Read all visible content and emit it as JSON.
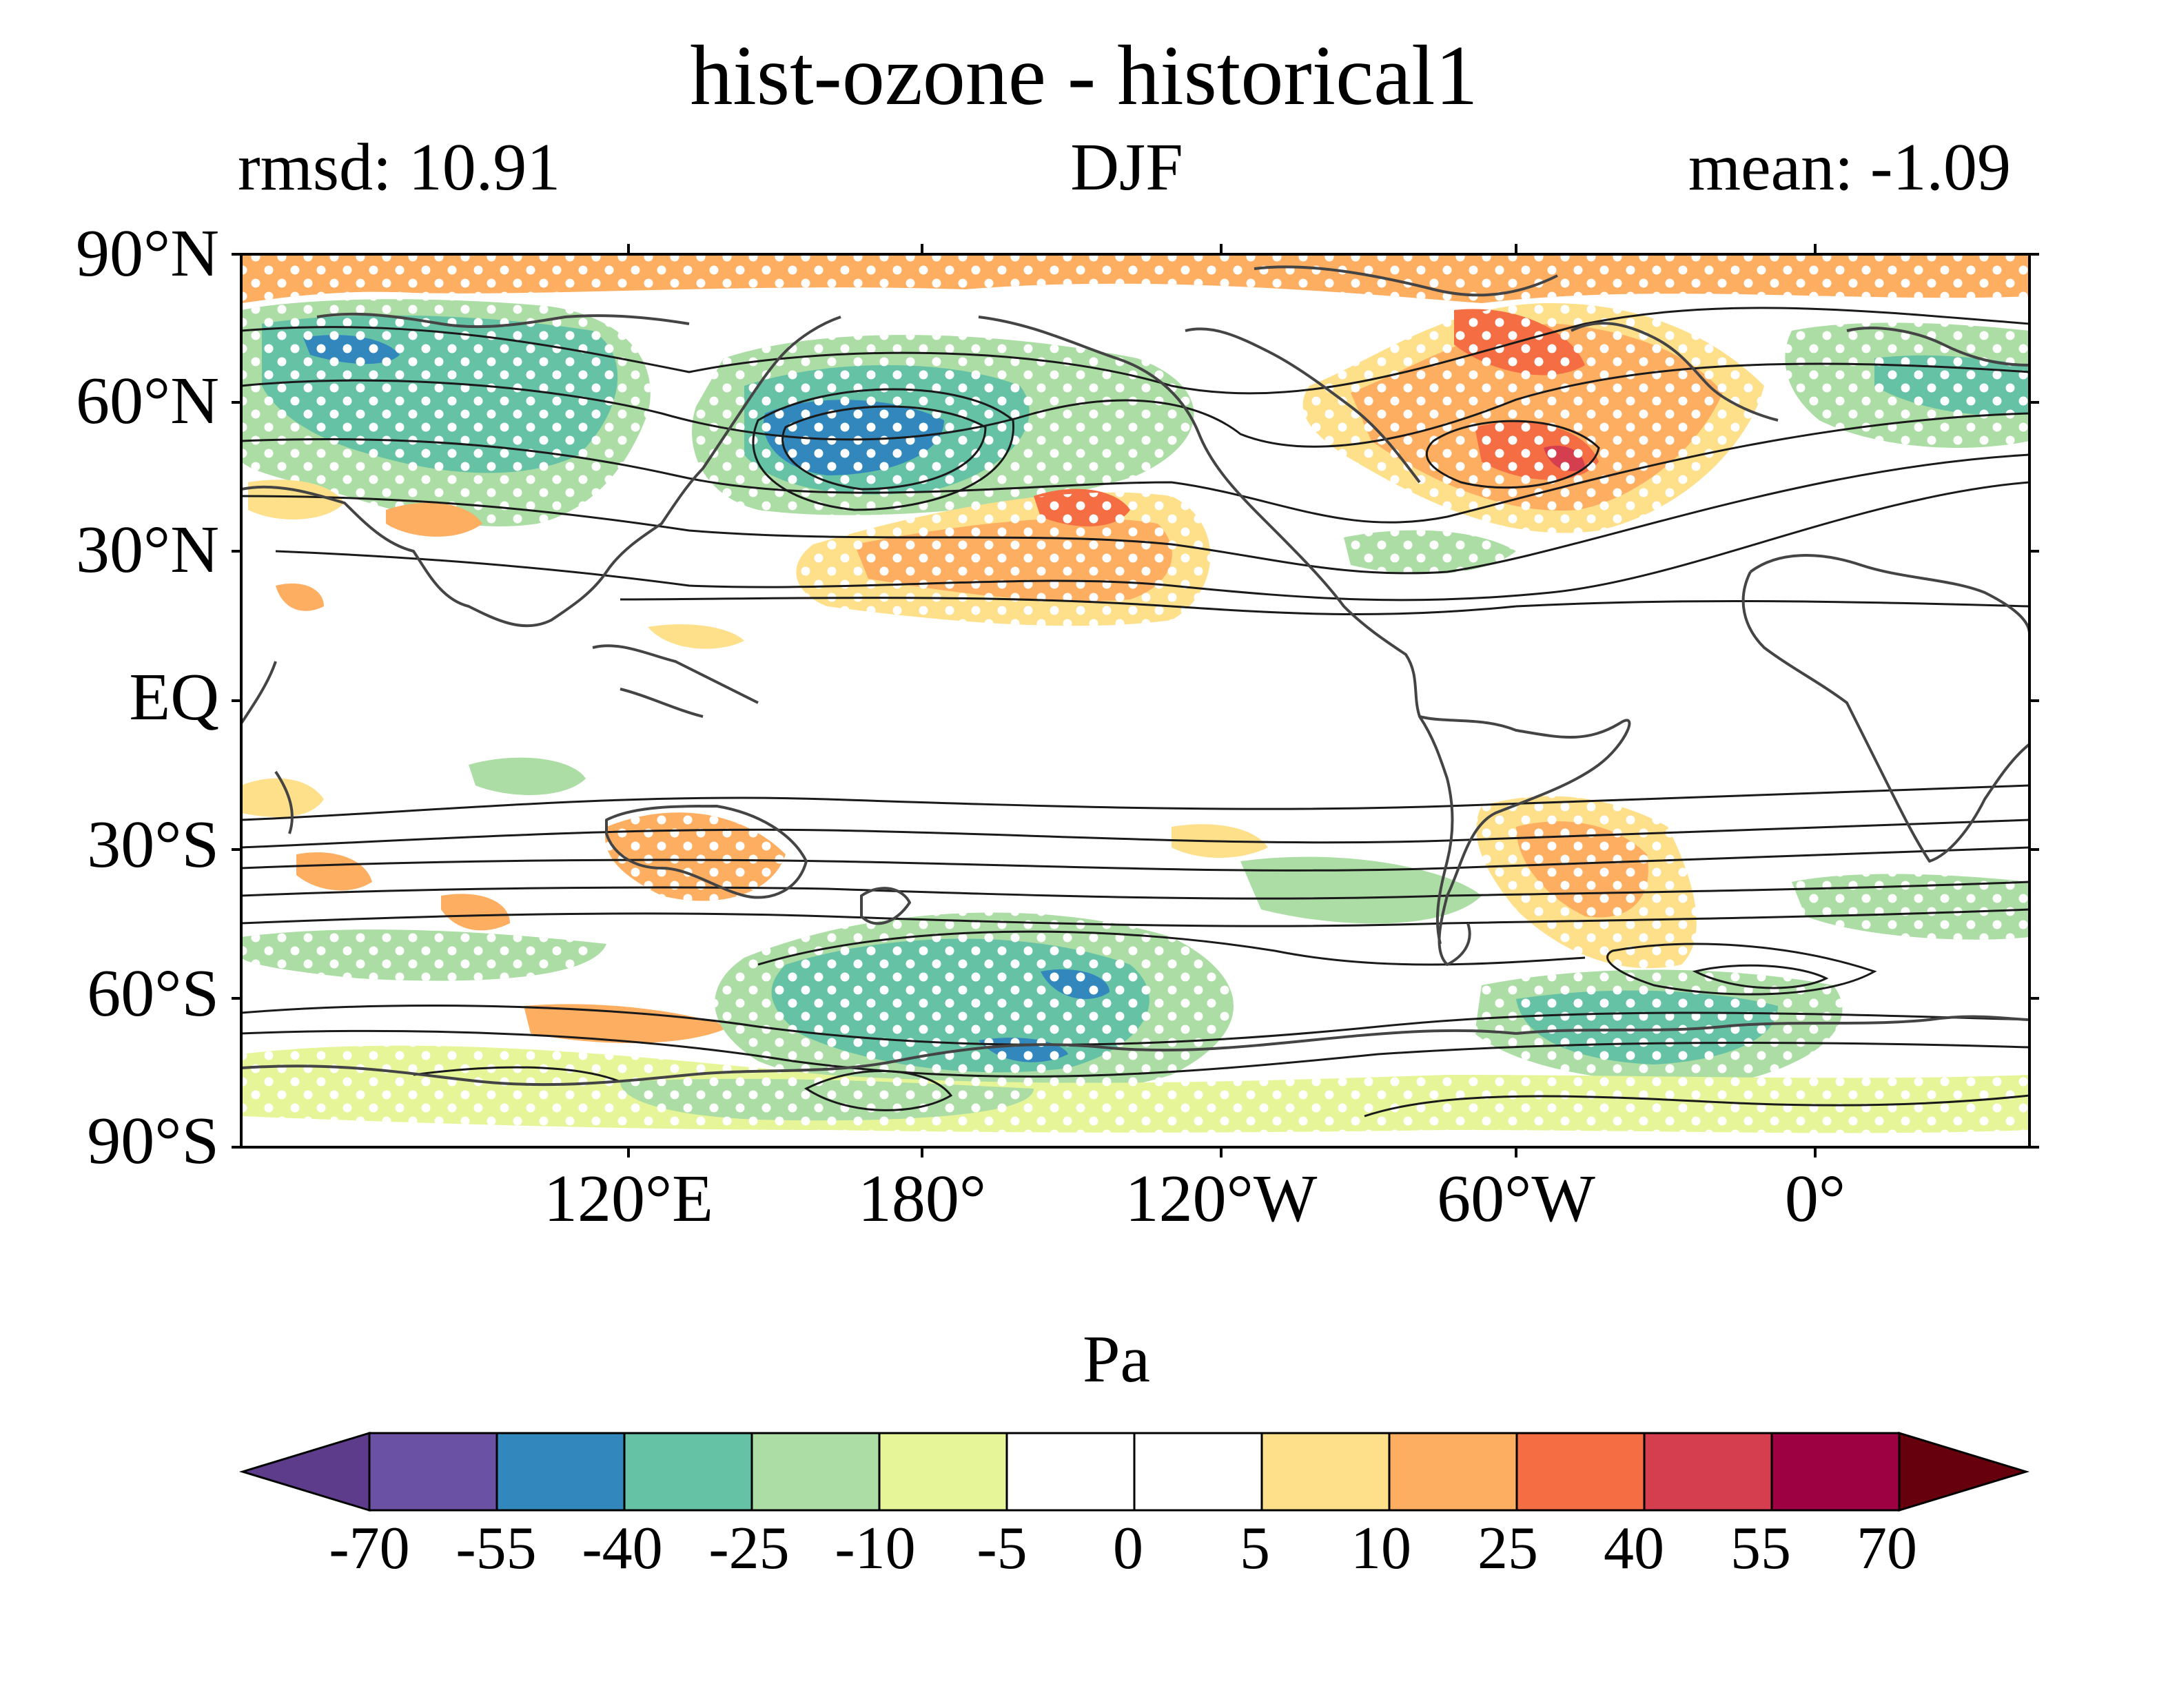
{
  "title": "hist-ozone - historical1",
  "subtitle_left": "rmsd: 10.91",
  "subtitle_center": "DJF",
  "subtitle_right": "mean: -1.09",
  "lat_labels": [
    "90°N",
    "60°N",
    "30°N",
    "EQ",
    "30°S",
    "60°S",
    "90°S"
  ],
  "lon_labels": [
    "120°E",
    "180°",
    "120°W",
    "60°W",
    "0°"
  ],
  "colorbar": {
    "title": "Pa",
    "tick_labels": [
      "-70",
      "-55",
      "-40",
      "-25",
      "-10",
      "-5",
      "0",
      "5",
      "10",
      "25",
      "40",
      "55",
      "70"
    ],
    "colors": [
      "#5e3c8c",
      "#6a51a3",
      "#3288bd",
      "#66c2a5",
      "#abdda4",
      "#e6f598",
      "#ffffff",
      "#ffffff",
      "#fee08b",
      "#fdae61",
      "#f46d43",
      "#d53e4f",
      "#9e0142",
      "#67000d"
    ]
  }
}
